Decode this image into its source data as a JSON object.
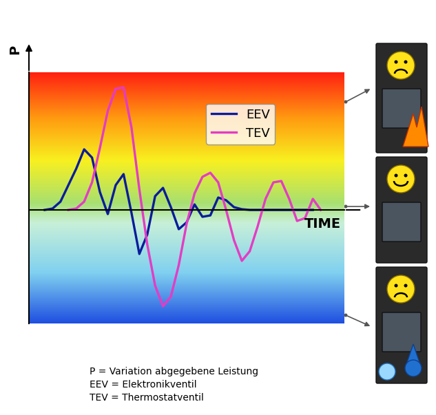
{
  "chart_data": {
    "type": "line",
    "x_label": "TIME",
    "y_label": "P",
    "x": [
      0,
      2.5,
      5,
      7.5,
      10,
      12.5,
      15,
      17.5,
      20,
      22.5,
      25,
      27.5,
      30,
      32.5,
      35,
      37.5,
      40,
      42.5,
      45,
      47.5,
      50,
      52.5,
      55,
      57.5,
      60,
      62.5,
      65,
      67.5,
      70,
      72.5,
      75,
      77.5,
      80,
      82.5,
      85,
      87.5,
      90,
      92.5,
      95,
      97.5,
      100
    ],
    "xlim": [
      0,
      100
    ],
    "ylim": [
      -8.25,
      10
    ],
    "xticks": [],
    "yticks": [],
    "tick_labels": false,
    "legend": "upper right",
    "series": [
      {
        "name": "EEV",
        "color": "#0a1c9c",
        "values": [
          null,
          null,
          0,
          0.1,
          0.6,
          1.8,
          3.0,
          4.4,
          3.8,
          1.3,
          -0.3,
          1.8,
          2.6,
          -0.2,
          -3.2,
          -1.8,
          1.0,
          1.6,
          0.2,
          -1.4,
          -0.9,
          0.4,
          -0.5,
          -0.4,
          0.9,
          0.7,
          0.2,
          0.05,
          0,
          0,
          0,
          0,
          0,
          0,
          0,
          0,
          0,
          null,
          null,
          null,
          null
        ]
      },
      {
        "name": "TEV",
        "color": "#e43cc4",
        "values": [
          null,
          null,
          null,
          null,
          null,
          0,
          0.1,
          0.6,
          2.0,
          4.5,
          7.2,
          8.8,
          8.9,
          6.0,
          1.5,
          -2.5,
          -5.5,
          -7.0,
          -6.3,
          -4.0,
          -1.0,
          1.2,
          2.4,
          2.7,
          2.0,
          0.0,
          -2.2,
          -3.7,
          -3.0,
          -1.2,
          0.8,
          2.0,
          2.1,
          0.8,
          -0.8,
          -0.6,
          0.8,
          0,
          null,
          null,
          null
        ]
      }
    ],
    "notes": [
      "P = Variation abgegebene Leistung",
      "EEV = Elektronikventil",
      "TEV = Thermostatventil"
    ]
  }
}
